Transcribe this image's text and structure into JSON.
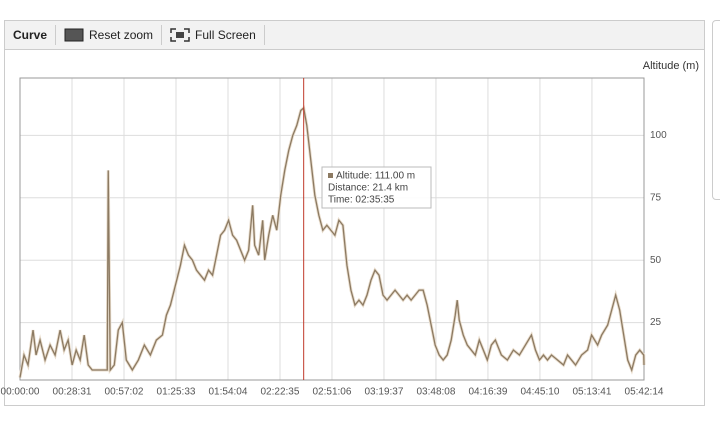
{
  "toolbar": {
    "title": "Curve",
    "reset": "Reset zoom",
    "fullscreen": "Full Screen"
  },
  "chart_data": {
    "type": "line",
    "y_label": "Altitude (m)",
    "color": "#8c7a62",
    "grid": true,
    "xlim": [
      0,
      20534
    ],
    "ylim": [
      2,
      123
    ],
    "yticks": [
      25,
      50,
      75,
      100
    ],
    "xticks": [
      {
        "value": 0,
        "label": "00:00:00"
      },
      {
        "value": 1711,
        "label": "00:28:31"
      },
      {
        "value": 3422,
        "label": "00:57:02"
      },
      {
        "value": 5133,
        "label": "01:25:33"
      },
      {
        "value": 6844,
        "label": "01:54:04"
      },
      {
        "value": 8555,
        "label": "02:22:35"
      },
      {
        "value": 10266,
        "label": "02:51:06"
      },
      {
        "value": 11977,
        "label": "03:19:37"
      },
      {
        "value": 13688,
        "label": "03:48:08"
      },
      {
        "value": 15399,
        "label": "04:16:39"
      },
      {
        "value": 17110,
        "label": "04:45:10"
      },
      {
        "value": 18821,
        "label": "05:13:41"
      },
      {
        "value": 20534,
        "label": "05:42:14"
      }
    ],
    "x": [
      0,
      132,
      264,
      429,
      528,
      660,
      825,
      990,
      1155,
      1320,
      1452,
      1584,
      1716,
      1848,
      1980,
      2112,
      2244,
      2376,
      2640,
      2871,
      2904,
      2970,
      3102,
      3234,
      3366,
      3498,
      3696,
      3894,
      4092,
      4290,
      4488,
      4686,
      4818,
      4950,
      5115,
      5280,
      5412,
      5544,
      5676,
      5808,
      5940,
      6072,
      6204,
      6336,
      6468,
      6600,
      6732,
      6864,
      6996,
      7128,
      7260,
      7392,
      7524,
      7656,
      7722,
      7854,
      7986,
      8052,
      8184,
      8316,
      8448,
      8580,
      8712,
      8844,
      8976,
      9108,
      9240,
      9335,
      9438,
      9570,
      9702,
      9834,
      9966,
      10098,
      10230,
      10362,
      10494,
      10626,
      10758,
      10890,
      11022,
      11154,
      11286,
      11418,
      11550,
      11682,
      11814,
      11946,
      12078,
      12210,
      12342,
      12474,
      12606,
      12738,
      12870,
      13002,
      13134,
      13266,
      13398,
      13530,
      13662,
      13794,
      13926,
      14058,
      14190,
      14322,
      14388,
      14454,
      14586,
      14718,
      14850,
      14982,
      15114,
      15246,
      15378,
      15510,
      15642,
      15840,
      16038,
      16236,
      16434,
      16632,
      16830,
      16962,
      17094,
      17226,
      17358,
      17490,
      17688,
      17886,
      18018,
      18150,
      18282,
      18480,
      18678,
      18810,
      19008,
      19140,
      19338,
      19470,
      19602,
      19734,
      19866,
      19998,
      20130,
      20262,
      20394,
      20526,
      20534
    ],
    "values": [
      3,
      12,
      8,
      22,
      12,
      18,
      10,
      16,
      12,
      22,
      14,
      18,
      8,
      14,
      10,
      20,
      8,
      6,
      6,
      6,
      86,
      6,
      8,
      22,
      25,
      10,
      6,
      10,
      16,
      12,
      18,
      20,
      28,
      32,
      40,
      48,
      56,
      52,
      50,
      46,
      44,
      42,
      46,
      44,
      52,
      60,
      62,
      66,
      60,
      58,
      54,
      50,
      54,
      72,
      56,
      52,
      66,
      50,
      60,
      68,
      62,
      76,
      86,
      94,
      100,
      104,
      110,
      111,
      104,
      90,
      76,
      68,
      62,
      64,
      62,
      60,
      66,
      64,
      48,
      38,
      32,
      34,
      32,
      36,
      42,
      46,
      44,
      36,
      34,
      36,
      38,
      36,
      34,
      36,
      34,
      36,
      38,
      38,
      32,
      24,
      16,
      12,
      10,
      12,
      18,
      28,
      34,
      26,
      20,
      16,
      14,
      12,
      18,
      14,
      10,
      16,
      18,
      12,
      10,
      14,
      12,
      16,
      20,
      14,
      10,
      12,
      10,
      12,
      10,
      8,
      12,
      10,
      8,
      12,
      14,
      20,
      16,
      20,
      24,
      30,
      36,
      30,
      20,
      10,
      6,
      12,
      14,
      12,
      8
    ],
    "tooltip": [
      "Altitude: 111.00 m",
      "Distance: 21.4 km",
      "Time: 02:35:35"
    ]
  }
}
